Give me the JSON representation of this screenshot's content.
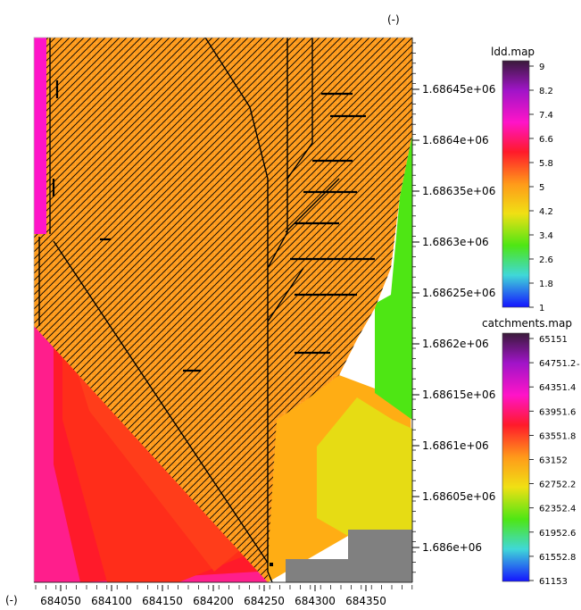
{
  "units_top": "(-)",
  "units_bottom": "(-)",
  "x_ticks": [
    "684050",
    "684100",
    "684150",
    "684200",
    "684250",
    "684300",
    "684350"
  ],
  "y_ticks": [
    "1.68645e+06",
    "1.6864e+06",
    "1.68635e+06",
    "1.6863e+06",
    "1.68625e+06",
    "1.6862e+06",
    "1.68615e+06",
    "1.6861e+06",
    "1.68605e+06",
    "1.686e+06"
  ],
  "legends": {
    "ldd": {
      "title": "ldd.map",
      "labels": [
        "9",
        "8.2",
        "7.4",
        "6.6",
        "5.8",
        "5",
        "4.2",
        "3.4",
        "2.6",
        "1.8",
        "1"
      ]
    },
    "catchments": {
      "title": "catchments.map",
      "labels": [
        "65151",
        "64751.2",
        "64351.4",
        "63951.6",
        "63551.8",
        "63152",
        "62752.2",
        "62352.4",
        "61952.6",
        "61552.8",
        "61153"
      ]
    }
  },
  "colors": {
    "orange": "#ff9a1a",
    "lightorange": "#ffad14",
    "red": "#ff2d1a",
    "darkred": "#ff1a2a",
    "magenta": "#ff14c8",
    "pink": "#ff1e8c",
    "yellow": "#e6dc14",
    "yelloworange": "#f5c814",
    "green": "#4ee614",
    "grey": "#808080",
    "flow": "#000000"
  }
}
